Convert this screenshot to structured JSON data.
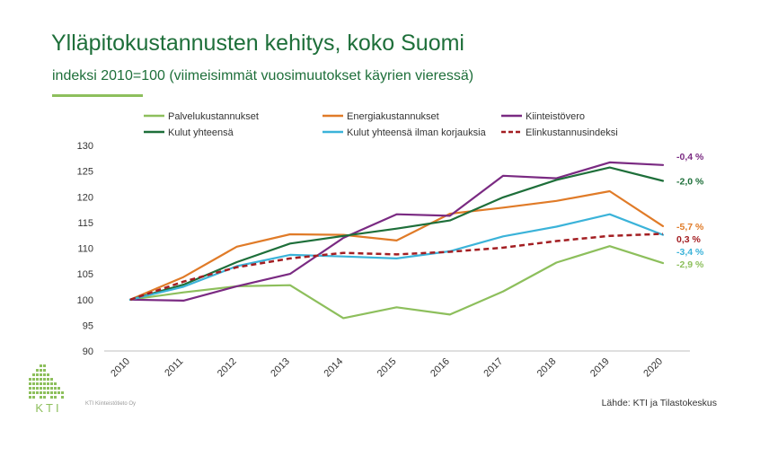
{
  "header": {
    "title": "Ylläpitokustannusten kehitys, koko Suomi",
    "subtitle": "indeksi 2010=100 (viimeisimmät vuosimuutokset käyrien vieressä)"
  },
  "footer": {
    "company": "KTI Kiinteistötieto Oy",
    "source": "Lähde: KTI ja Tilastokeskus",
    "logo_text": "KTI"
  },
  "chart_data": {
    "type": "line",
    "x": [
      "2010",
      "2011",
      "2012",
      "2013",
      "2014",
      "2015",
      "2016",
      "2017",
      "2018",
      "2019",
      "2020"
    ],
    "ylim": [
      90,
      130
    ],
    "yticks": [
      90,
      95,
      100,
      105,
      110,
      115,
      120,
      125,
      130
    ],
    "grid": false,
    "legend_position": "top",
    "series": [
      {
        "name": "Palvelukustannukset",
        "color": "#8dbf5c",
        "dashed": false,
        "values": [
          100,
          101.4,
          102.6,
          102.8,
          96.4,
          98.5,
          97.1,
          101.6,
          107.2,
          110.4,
          107.1
        ],
        "change_label": "-2,9 %"
      },
      {
        "name": "Energiakustannukset",
        "color": "#e07b28",
        "dashed": false,
        "values": [
          100,
          104.4,
          110.3,
          112.7,
          112.6,
          111.5,
          116.7,
          117.9,
          119.2,
          121.1,
          114.3
        ],
        "change_label": "-5,7 %"
      },
      {
        "name": "Kiinteistövero",
        "color": "#7a2a82",
        "dashed": false,
        "values": [
          100,
          99.8,
          102.6,
          105.0,
          112.0,
          116.6,
          116.3,
          124.1,
          123.6,
          126.7,
          126.2
        ],
        "change_label": "-0,4 %"
      },
      {
        "name": "Kulut yhteensä",
        "color": "#1e6f3a",
        "dashed": false,
        "values": [
          100,
          102.9,
          107.3,
          110.9,
          112.4,
          113.8,
          115.4,
          119.9,
          123.3,
          125.7,
          123.1
        ],
        "change_label": "-2,0 %"
      },
      {
        "name": "Kulut yhteensä ilman korjauksia",
        "color": "#3bb3d9",
        "dashed": false,
        "values": [
          100,
          102.5,
          106.5,
          108.7,
          108.4,
          108.0,
          109.4,
          112.3,
          114.2,
          116.6,
          112.6
        ],
        "change_label": "-3,4 %"
      },
      {
        "name": "Elinkustannusindeksi",
        "color": "#a31e22",
        "dashed": true,
        "values": [
          100,
          103.5,
          106.3,
          108.0,
          109.1,
          108.8,
          109.3,
          110.1,
          111.4,
          112.4,
          112.8
        ],
        "change_label": "0,3 %"
      }
    ]
  }
}
